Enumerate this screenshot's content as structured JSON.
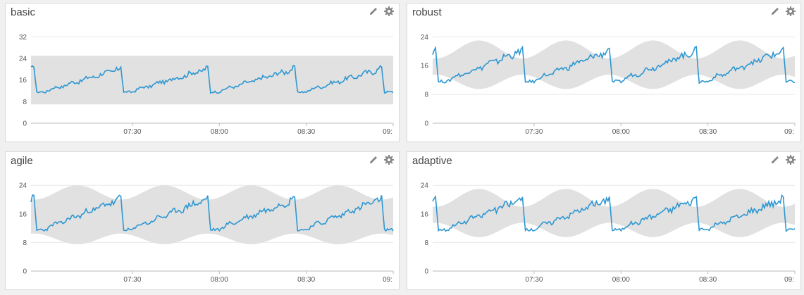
{
  "panels": [
    {
      "title": "basic",
      "band": "flat"
    },
    {
      "title": "robust",
      "band": "seasonal"
    },
    {
      "title": "agile",
      "band": "agile"
    },
    {
      "title": "adaptive",
      "band": "seasonal"
    }
  ],
  "icons": {
    "edit": "pencil-icon",
    "settings": "gear-icon"
  },
  "colors": {
    "line": "#2e97d1",
    "band": "#e1e1e1",
    "grid": "#e8e8e8",
    "axis": "#bbbbbb"
  },
  "chart_data": [
    {
      "type": "line",
      "title": "basic",
      "y_ticks": [
        0,
        8,
        16,
        24,
        32
      ],
      "ylim": [
        0,
        36
      ],
      "x_ticks": [
        "07:30",
        "08:00",
        "08:30",
        "09:"
      ],
      "x_range_minutes": [
        415,
        540
      ],
      "period_minutes": 30,
      "series": [
        {
          "values": "repeating sawtooth: drops to ~11, climbs to ~20, resets every 30 min"
        }
      ],
      "band": {
        "type": "flat",
        "lower": 7,
        "upper": 25
      }
    },
    {
      "type": "line",
      "title": "robust",
      "y_ticks": [
        0,
        8,
        16,
        24
      ],
      "ylim": [
        0,
        27
      ],
      "x_ticks": [
        "07:30",
        "08:00",
        "08:30",
        "09:"
      ],
      "x_range_minutes": [
        415,
        540
      ],
      "period_minutes": 30,
      "band": {
        "type": "seasonal"
      }
    },
    {
      "type": "line",
      "title": "agile",
      "y_ticks": [
        0,
        8,
        16,
        24
      ],
      "ylim": [
        0,
        27
      ],
      "x_ticks": [
        "07:30",
        "08:00",
        "08:30",
        "09:"
      ],
      "x_range_minutes": [
        415,
        540
      ],
      "period_minutes": 30,
      "band": {
        "type": "agile"
      }
    },
    {
      "type": "line",
      "title": "adaptive",
      "y_ticks": [
        0,
        8,
        16,
        24
      ],
      "ylim": [
        0,
        27
      ],
      "x_ticks": [
        "07:30",
        "08:00",
        "08:30",
        "09:"
      ],
      "x_range_minutes": [
        415,
        540
      ],
      "period_minutes": 30,
      "band": {
        "type": "seasonal"
      }
    }
  ]
}
